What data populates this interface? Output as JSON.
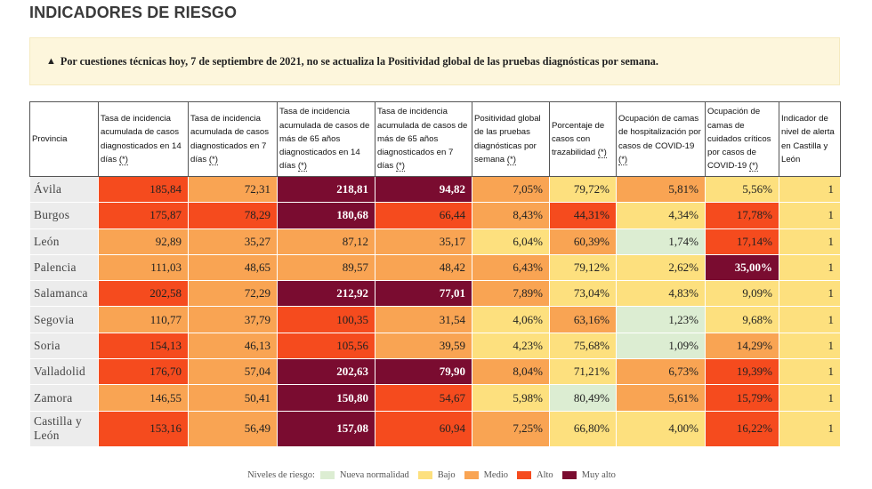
{
  "page": {
    "title": "INDICADORES DE RIESGO",
    "alert_icon": "warning-triangle-icon",
    "alert_symbol": "▲",
    "alert_text": "Por cuestiones técnicas hoy, 7 de septiembre de 2021, no se actualiza la Positividad global de las pruebas diagnósticas por semana."
  },
  "table": {
    "headers": [
      {
        "text": "Provincia"
      },
      {
        "text": "Tasa de incidencia acumulada de casos diagnosticados en 14 días ",
        "abbr": "(*)"
      },
      {
        "text": "Tasa de incidencia acumulada de casos diagnosticados en 7 días ",
        "abbr": "(*)"
      },
      {
        "text": "Tasa de incidencia acumulada de casos de más de 65 años diagnosticados en 14 días ",
        "abbr": "(*)"
      },
      {
        "text": "Tasa de incidencia acumulada de casos de más de 65 años diagnosticados en 7 días ",
        "abbr": "(*)"
      },
      {
        "text": "Positividad global de las pruebas diagnósticas por semana ",
        "abbr": "(*)"
      },
      {
        "text": "Porcentaje de casos con trazabilidad ",
        "abbr": "(*)"
      },
      {
        "text": "Ocupación de camas de hospitalización por casos de COVID-19 ",
        "abbr": "(*)"
      },
      {
        "text": "Ocupación de camas de cuidados críticos por casos de COVID-19 ",
        "abbr": "(*)"
      },
      {
        "text": "Indicador de nivel de alerta en Castilla y León"
      }
    ],
    "rows": [
      {
        "provincia": "Ávila",
        "cells": [
          [
            "185,84",
            "a"
          ],
          [
            "72,31",
            "m"
          ],
          [
            "218,81",
            "ma"
          ],
          [
            "94,82",
            "ma"
          ],
          [
            "7,05%",
            "m"
          ],
          [
            "79,72%",
            "b"
          ],
          [
            "5,81%",
            "m"
          ],
          [
            "5,56%",
            "b"
          ],
          [
            "1",
            "b"
          ]
        ]
      },
      {
        "provincia": "Burgos",
        "cells": [
          [
            "175,87",
            "a"
          ],
          [
            "78,29",
            "a"
          ],
          [
            "180,68",
            "ma"
          ],
          [
            "66,44",
            "a"
          ],
          [
            "8,43%",
            "m"
          ],
          [
            "44,31%",
            "a"
          ],
          [
            "4,34%",
            "b"
          ],
          [
            "17,78%",
            "a"
          ],
          [
            "1",
            "b"
          ]
        ]
      },
      {
        "provincia": "León",
        "cells": [
          [
            "92,89",
            "m"
          ],
          [
            "35,27",
            "m"
          ],
          [
            "87,12",
            "m"
          ],
          [
            "35,17",
            "m"
          ],
          [
            "6,04%",
            "b"
          ],
          [
            "60,39%",
            "m"
          ],
          [
            "1,74%",
            "nn"
          ],
          [
            "17,14%",
            "a"
          ],
          [
            "1",
            "b"
          ]
        ]
      },
      {
        "provincia": "Palencia",
        "cells": [
          [
            "111,03",
            "m"
          ],
          [
            "48,65",
            "m"
          ],
          [
            "89,57",
            "m"
          ],
          [
            "48,42",
            "m"
          ],
          [
            "6,43%",
            "m"
          ],
          [
            "79,12%",
            "b"
          ],
          [
            "2,62%",
            "b"
          ],
          [
            "35,00%",
            "ma"
          ],
          [
            "1",
            "b"
          ]
        ]
      },
      {
        "provincia": "Salamanca",
        "cells": [
          [
            "202,58",
            "a"
          ],
          [
            "72,29",
            "m"
          ],
          [
            "212,92",
            "ma"
          ],
          [
            "77,01",
            "ma"
          ],
          [
            "7,89%",
            "m"
          ],
          [
            "73,04%",
            "b"
          ],
          [
            "4,83%",
            "b"
          ],
          [
            "9,09%",
            "b"
          ],
          [
            "1",
            "b"
          ]
        ]
      },
      {
        "provincia": "Segovia",
        "cells": [
          [
            "110,77",
            "m"
          ],
          [
            "37,79",
            "m"
          ],
          [
            "100,35",
            "a"
          ],
          [
            "31,54",
            "m"
          ],
          [
            "4,06%",
            "b"
          ],
          [
            "63,16%",
            "m"
          ],
          [
            "1,23%",
            "nn"
          ],
          [
            "9,68%",
            "b"
          ],
          [
            "1",
            "b"
          ]
        ]
      },
      {
        "provincia": "Soria",
        "cells": [
          [
            "154,13",
            "a"
          ],
          [
            "46,13",
            "m"
          ],
          [
            "105,56",
            "a"
          ],
          [
            "39,59",
            "m"
          ],
          [
            "4,23%",
            "b"
          ],
          [
            "75,68%",
            "b"
          ],
          [
            "1,09%",
            "nn"
          ],
          [
            "14,29%",
            "m"
          ],
          [
            "1",
            "b"
          ]
        ]
      },
      {
        "provincia": "Valladolid",
        "cells": [
          [
            "176,70",
            "a"
          ],
          [
            "57,04",
            "m"
          ],
          [
            "202,63",
            "ma"
          ],
          [
            "79,90",
            "ma"
          ],
          [
            "8,04%",
            "m"
          ],
          [
            "71,21%",
            "b"
          ],
          [
            "6,73%",
            "m"
          ],
          [
            "19,39%",
            "a"
          ],
          [
            "1",
            "b"
          ]
        ]
      },
      {
        "provincia": "Zamora",
        "cells": [
          [
            "146,55",
            "m"
          ],
          [
            "50,41",
            "m"
          ],
          [
            "150,80",
            "ma"
          ],
          [
            "54,67",
            "a"
          ],
          [
            "5,98%",
            "b"
          ],
          [
            "80,49%",
            "nn"
          ],
          [
            "5,61%",
            "m"
          ],
          [
            "15,79%",
            "a"
          ],
          [
            "1",
            "b"
          ]
        ]
      },
      {
        "provincia": "Castilla y León",
        "total": true,
        "cells": [
          [
            "153,16",
            "a"
          ],
          [
            "56,49",
            "m"
          ],
          [
            "157,08",
            "ma"
          ],
          [
            "60,94",
            "a"
          ],
          [
            "7,25%",
            "m"
          ],
          [
            "66,80%",
            "b"
          ],
          [
            "4,00%",
            "b"
          ],
          [
            "16,22%",
            "a"
          ],
          [
            "1",
            "b"
          ]
        ]
      }
    ]
  },
  "legend": {
    "title": "Niveles de riesgo:",
    "items": [
      {
        "key": "nn",
        "label": "Nueva normalidad",
        "color": "#dcedd2"
      },
      {
        "key": "b",
        "label": "Bajo",
        "color": "#fde07e"
      },
      {
        "key": "m",
        "label": "Medio",
        "color": "#f9a453"
      },
      {
        "key": "a",
        "label": "Alto",
        "color": "#f54b1e"
      },
      {
        "key": "ma",
        "label": "Muy alto",
        "color": "#7a0c30"
      }
    ]
  }
}
